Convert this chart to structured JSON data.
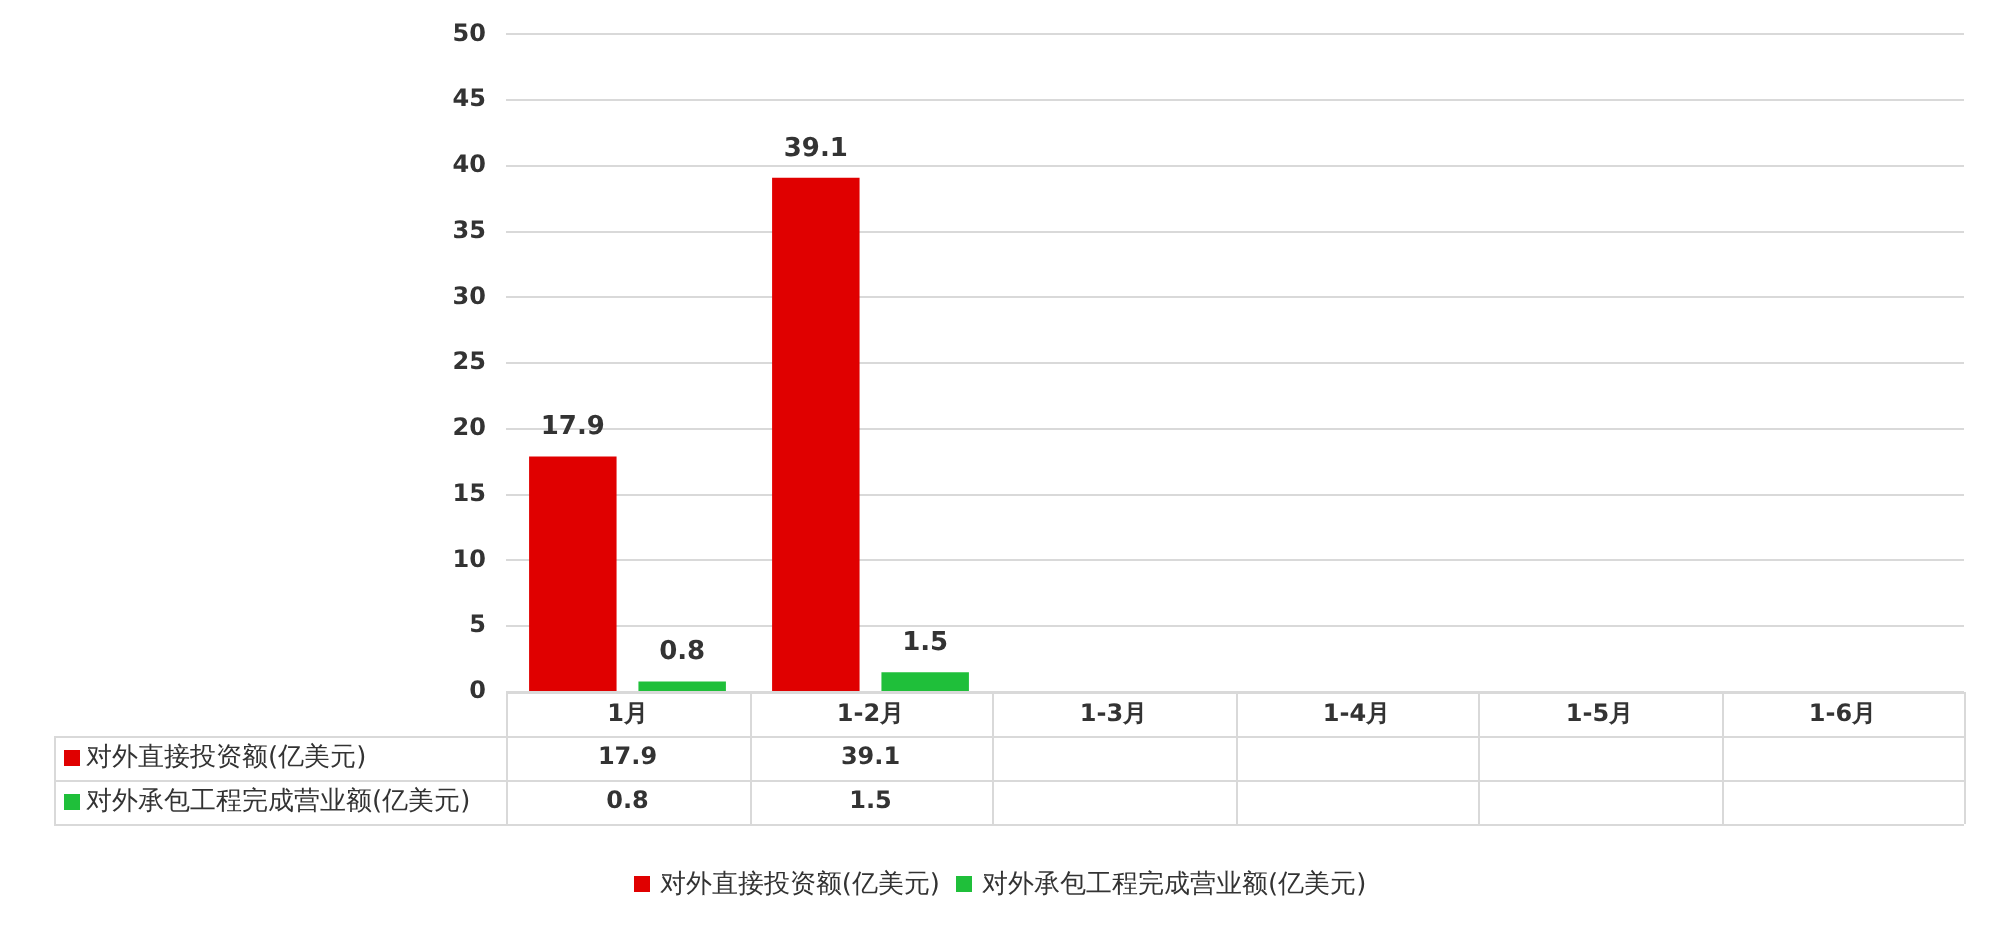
{
  "chart_data": {
    "type": "bar",
    "categories": [
      "1月",
      "1-2月",
      "1-3月",
      "1-4月",
      "1-5月",
      "1-6月"
    ],
    "series": [
      {
        "name": "对外直接投资额(亿美元)",
        "color": "#e00000",
        "values": [
          17.9,
          39.1,
          null,
          null,
          null,
          null
        ],
        "value_labels": [
          "17.9",
          "39.1",
          null,
          null,
          null,
          null
        ]
      },
      {
        "name": "对外承包工程完成营业额(亿美元)",
        "color": "#1fbf3a",
        "values": [
          0.8,
          1.5,
          null,
          null,
          null,
          null
        ],
        "value_labels": [
          "0.8",
          "1.5",
          null,
          null,
          null,
          null
        ]
      }
    ],
    "annotations": [
      "17.9",
      "39.1",
      "0.8",
      "1.5"
    ],
    "ylim": [
      0,
      50
    ],
    "yticks": [
      0,
      5,
      10,
      15,
      20,
      25,
      30,
      35,
      40,
      45,
      50
    ],
    "grid": "y",
    "legend": "bottom",
    "data_labels": true
  }
}
